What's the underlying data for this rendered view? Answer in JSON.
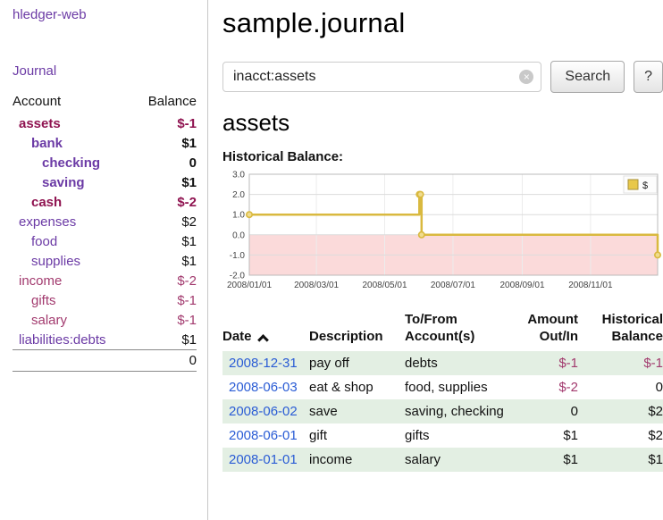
{
  "colors": {
    "sidebar_link": "#6b3aa5",
    "date_link": "#2a5cd5",
    "negative_bold": "#8f1350",
    "negative": "#a23a6e",
    "row_stripe": "#e3efe3"
  },
  "sidebar": {
    "app_title": "hledger-web",
    "journal_label": "Journal",
    "accounts": {
      "header_account": "Account",
      "header_balance": "Balance",
      "rows": [
        {
          "name": "assets",
          "balance": "$-1",
          "indent": 0,
          "bold": true,
          "negative": true
        },
        {
          "name": "bank",
          "balance": "$1",
          "indent": 1,
          "bold": true,
          "negative": false
        },
        {
          "name": "checking",
          "balance": "0",
          "indent": 2,
          "bold": true,
          "negative": false
        },
        {
          "name": "saving",
          "balance": "$1",
          "indent": 2,
          "bold": true,
          "negative": false
        },
        {
          "name": "cash",
          "balance": "$-2",
          "indent": 1,
          "bold": true,
          "negative": true
        },
        {
          "name": "expenses",
          "balance": "$2",
          "indent": 0,
          "bold": false,
          "negative": false
        },
        {
          "name": "food",
          "balance": "$1",
          "indent": 1,
          "bold": false,
          "negative": false
        },
        {
          "name": "supplies",
          "balance": "$1",
          "indent": 1,
          "bold": false,
          "negative": false
        },
        {
          "name": "income",
          "balance": "$-2",
          "indent": 0,
          "bold": false,
          "negative": true
        },
        {
          "name": "gifts",
          "balance": "$-1",
          "indent": 1,
          "bold": false,
          "negative": true
        },
        {
          "name": "salary",
          "balance": "$-1",
          "indent": 1,
          "bold": false,
          "negative": true
        },
        {
          "name": "liabilities:debts",
          "balance": "$1",
          "indent": 0,
          "bold": false,
          "negative": false
        }
      ],
      "total": "0"
    }
  },
  "main": {
    "title": "sample.journal",
    "search": {
      "value": "inacct:assets",
      "clear_icon": "×",
      "button_label": "Search",
      "help_label": "?"
    },
    "account_heading": "assets",
    "chart_label": "Historical Balance:"
  },
  "chart_data": {
    "type": "line",
    "title": "Historical Balance:",
    "step": true,
    "legend": [
      {
        "label": "$",
        "color": "#e8c84a"
      }
    ],
    "legend_position": "top-right",
    "grid": true,
    "x_domain": [
      "2008-01-01",
      "2008-12-31"
    ],
    "x_ticks": [
      {
        "label": "2008/01/01",
        "date": "2008-01-01"
      },
      {
        "label": "2008/03/01",
        "date": "2008-03-01"
      },
      {
        "label": "2008/05/01",
        "date": "2008-05-01"
      },
      {
        "label": "2008/07/01",
        "date": "2008-07-01"
      },
      {
        "label": "2008/09/01",
        "date": "2008-09-01"
      },
      {
        "label": "2008/11/01",
        "date": "2008-11-01"
      }
    ],
    "ylim": [
      -2,
      3
    ],
    "y_ticks": [
      3,
      2,
      1,
      0,
      -1,
      -2
    ],
    "series": [
      {
        "name": "$",
        "points": [
          {
            "date": "2008-01-01",
            "value": 1
          },
          {
            "date": "2008-06-01",
            "value": 2
          },
          {
            "date": "2008-06-02",
            "value": 2
          },
          {
            "date": "2008-06-03",
            "value": 0
          },
          {
            "date": "2008-12-31",
            "value": -1
          }
        ]
      }
    ],
    "colors": {
      "line": "#d9b93f",
      "marker_fill": "#f0dc8e",
      "negative_region": "#fbdada",
      "grid": "#dcdcdc",
      "border": "#bbbbbb"
    }
  },
  "register": {
    "headers": {
      "date": "Date",
      "description": "Description",
      "tofrom_line1": "To/From",
      "tofrom_line2": "Account(s)",
      "amount_line1": "Amount",
      "amount_line2": "Out/In",
      "hist_line1": "Historical",
      "hist_line2": "Balance"
    },
    "sort": {
      "column": "date",
      "direction": "ascending"
    },
    "rows": [
      {
        "date": "2008-12-31",
        "description": "pay off",
        "accounts": "debts",
        "amount": "$-1",
        "amount_negative": true,
        "balance": "$-1",
        "balance_negative": true
      },
      {
        "date": "2008-06-03",
        "description": "eat & shop",
        "accounts": "food, supplies",
        "amount": "$-2",
        "amount_negative": true,
        "balance": "0",
        "balance_negative": false
      },
      {
        "date": "2008-06-02",
        "description": "save",
        "accounts": "saving, checking",
        "amount": "0",
        "amount_negative": false,
        "balance": "$2",
        "balance_negative": false
      },
      {
        "date": "2008-06-01",
        "description": "gift",
        "accounts": "gifts",
        "amount": "$1",
        "amount_negative": false,
        "balance": "$2",
        "balance_negative": false
      },
      {
        "date": "2008-01-01",
        "description": "income",
        "accounts": "salary",
        "amount": "$1",
        "amount_negative": false,
        "balance": "$1",
        "balance_negative": false
      }
    ]
  }
}
